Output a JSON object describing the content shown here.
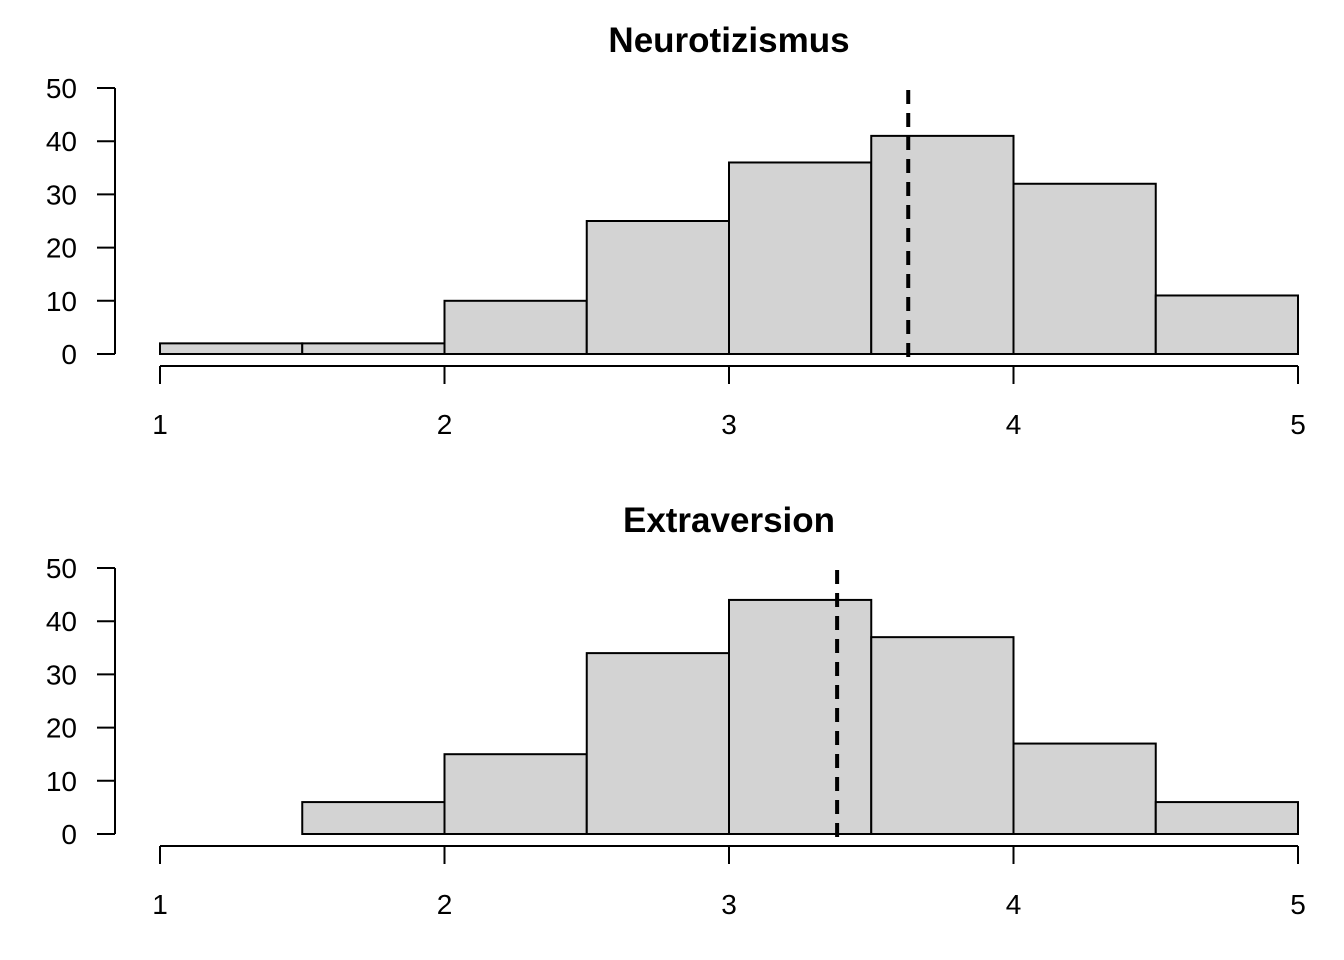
{
  "chart_data": [
    {
      "type": "bar",
      "title": "Neurotizismus",
      "xlabel": "",
      "ylabel": "",
      "bins": [
        [
          1,
          1.5
        ],
        [
          1.5,
          2
        ],
        [
          2,
          2.5
        ],
        [
          2.5,
          3
        ],
        [
          3,
          3.5
        ],
        [
          3.5,
          4
        ],
        [
          4,
          4.5
        ],
        [
          4.5,
          5
        ]
      ],
      "values": [
        2,
        2,
        10,
        25,
        36,
        41,
        32,
        11
      ],
      "mean_line": 3.63,
      "xlim": [
        1,
        5
      ],
      "ylim": [
        0,
        50
      ],
      "xticks": [
        "1",
        "2",
        "3",
        "4",
        "5"
      ],
      "yticks": [
        "0",
        "10",
        "20",
        "30",
        "40",
        "50"
      ],
      "grid": false,
      "bar_color": "#d3d3d3"
    },
    {
      "type": "bar",
      "title": "Extraversion",
      "xlabel": "",
      "ylabel": "",
      "bins": [
        [
          1,
          1.5
        ],
        [
          1.5,
          2
        ],
        [
          2,
          2.5
        ],
        [
          2.5,
          3
        ],
        [
          3,
          3.5
        ],
        [
          3.5,
          4
        ],
        [
          4,
          4.5
        ],
        [
          4.5,
          5
        ]
      ],
      "values": [
        0,
        6,
        15,
        34,
        44,
        37,
        17,
        6
      ],
      "mean_line": 3.38,
      "xlim": [
        1,
        5
      ],
      "ylim": [
        0,
        50
      ],
      "xticks": [
        "1",
        "2",
        "3",
        "4",
        "5"
      ],
      "yticks": [
        "0",
        "10",
        "20",
        "30",
        "40",
        "50"
      ],
      "grid": false,
      "bar_color": "#d3d3d3"
    }
  ]
}
